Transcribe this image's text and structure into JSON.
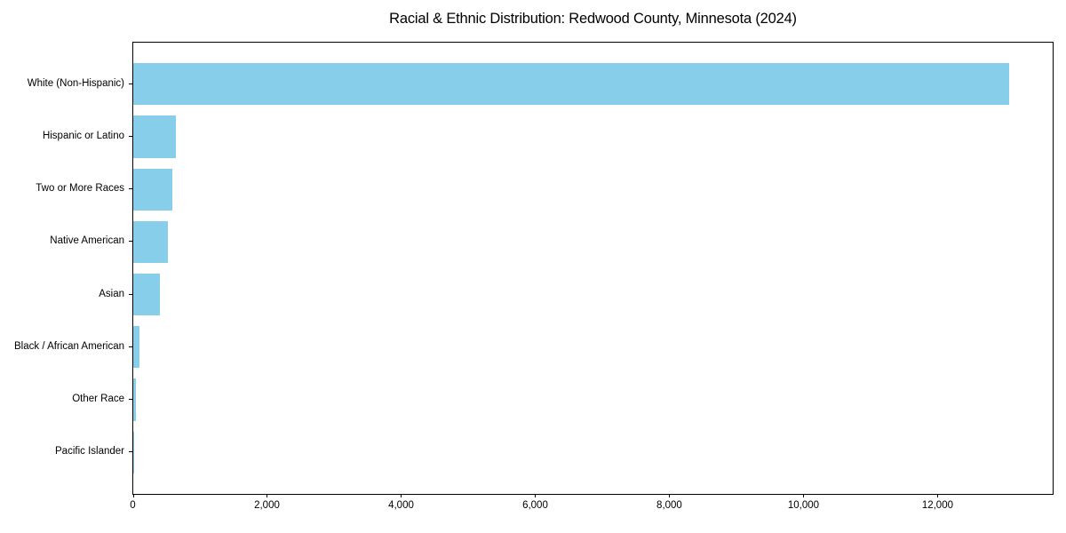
{
  "title": "Racial & Ethnic Distribution: Redwood County, Minnesota (2024)",
  "chart_data": {
    "type": "bar",
    "orientation": "horizontal",
    "title": "Racial & Ethnic Distribution: Redwood County, Minnesota (2024)",
    "categories": [
      "White (Non-Hispanic)",
      "Hispanic or Latino",
      "Two or More Races",
      "Native American",
      "Asian",
      "Black / African American",
      "Other Race",
      "Pacific Islander"
    ],
    "values": [
      13060,
      640,
      585,
      515,
      400,
      90,
      40,
      5
    ],
    "xlabel": "",
    "ylabel": "",
    "xlim": [
      0,
      13710
    ],
    "x_ticks": [
      0,
      2000,
      4000,
      6000,
      8000,
      10000,
      12000
    ],
    "x_tick_labels": [
      "0",
      "2,000",
      "4,000",
      "6,000",
      "8,000",
      "10,000",
      "12,000"
    ],
    "bar_color": "#87CEEB",
    "background_color": "#ffffff",
    "grid": false,
    "legend": false
  }
}
